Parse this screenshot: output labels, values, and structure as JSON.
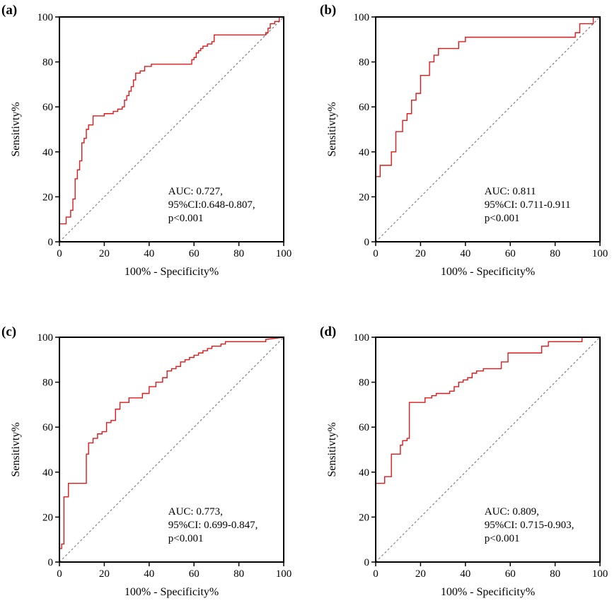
{
  "chart_data": [
    {
      "type": "line",
      "panel": "(a)",
      "xlabel": "100% - Specificity%",
      "ylabel": "Sensitivty%",
      "xlim": [
        0,
        100
      ],
      "ylim": [
        0,
        100
      ],
      "xticks": [
        "0",
        "20",
        "40",
        "60",
        "80",
        "100"
      ],
      "yticks": [
        "0",
        "20",
        "40",
        "60",
        "80",
        "100"
      ],
      "annotation": [
        "AUC: 0.727,",
        "95%CI:0.648-0.807,",
        "p<0.001"
      ],
      "series": [
        {
          "name": "ROC",
          "color": "#e0191a",
          "x": [
            0,
            0,
            3,
            3,
            5,
            5,
            6,
            6,
            7,
            7,
            8,
            8,
            9,
            9,
            10,
            10,
            11,
            11,
            12,
            12,
            13,
            13,
            15,
            15,
            20,
            20,
            24,
            24,
            26,
            26,
            28,
            28,
            29,
            29,
            30,
            30,
            31,
            31,
            32,
            32,
            33,
            33,
            34,
            34,
            35,
            35,
            36,
            36,
            37,
            37,
            38,
            38,
            39,
            39,
            41,
            41,
            59,
            59,
            60,
            60,
            61,
            61,
            62,
            62,
            63,
            63,
            64,
            64,
            66,
            66,
            68,
            68,
            69,
            69,
            70,
            70,
            92,
            92,
            93,
            93,
            94,
            94,
            96,
            96,
            98,
            98,
            100
          ],
          "y": [
            0,
            8,
            8,
            11,
            11,
            14,
            14,
            19,
            19,
            28,
            28,
            32,
            32,
            36,
            36,
            44,
            44,
            46,
            46,
            50,
            50,
            52,
            52,
            56,
            56,
            57,
            57,
            58,
            58,
            59,
            59,
            60,
            60,
            63,
            63,
            65,
            65,
            67,
            67,
            69,
            69,
            72,
            72,
            75,
            75,
            75,
            75,
            76,
            76,
            76,
            76,
            78,
            78,
            78,
            78,
            79,
            79,
            81,
            81,
            82,
            82,
            84,
            84,
            85,
            85,
            86,
            86,
            87,
            87,
            88,
            88,
            89,
            89,
            92,
            92,
            92,
            92,
            93,
            93,
            95,
            95,
            97,
            97,
            98,
            98,
            100,
            100
          ]
        },
        {
          "name": "reference",
          "color": "#7f7f7f",
          "x": [
            0,
            100
          ],
          "y": [
            0,
            100
          ]
        }
      ]
    },
    {
      "type": "line",
      "panel": "(b)",
      "xlabel": "100% - Specificity%",
      "ylabel": "Sensitivty%",
      "xlim": [
        0,
        100
      ],
      "ylim": [
        0,
        100
      ],
      "xticks": [
        "0",
        "20",
        "40",
        "60",
        "80",
        "100"
      ],
      "yticks": [
        "0",
        "20",
        "40",
        "60",
        "80",
        "100"
      ],
      "annotation": [
        "AUC: 0.811",
        "95%CI: 0.711-0.911",
        "p<0.001"
      ],
      "series": [
        {
          "name": "ROC",
          "color": "#e0191a",
          "x": [
            0,
            0,
            2,
            2,
            7,
            7,
            9,
            9,
            12,
            12,
            14,
            14,
            16,
            16,
            18,
            18,
            20,
            20,
            24,
            24,
            26,
            26,
            28,
            28,
            30,
            30,
            37,
            37,
            40,
            40,
            89,
            89,
            91,
            91,
            97,
            97,
            100
          ],
          "y": [
            0,
            29,
            29,
            34,
            34,
            40,
            40,
            49,
            49,
            54,
            54,
            57,
            57,
            63,
            63,
            66,
            66,
            74,
            74,
            80,
            80,
            83,
            83,
            86,
            86,
            86,
            86,
            89,
            89,
            91,
            91,
            93,
            93,
            97,
            97,
            100,
            100
          ]
        },
        {
          "name": "reference",
          "color": "#7f7f7f",
          "x": [
            0,
            100
          ],
          "y": [
            0,
            100
          ]
        }
      ]
    },
    {
      "type": "line",
      "panel": "(c)",
      "xlabel": "100% - Specificity%",
      "ylabel": "Sensitivty%",
      "xlim": [
        0,
        100
      ],
      "ylim": [
        0,
        100
      ],
      "xticks": [
        "0",
        "20",
        "40",
        "60",
        "80",
        "100"
      ],
      "yticks": [
        "0",
        "20",
        "40",
        "60",
        "80",
        "100"
      ],
      "annotation": [
        "AUC: 0.773,",
        "95%CI: 0.699-0.847,",
        "p<0.001"
      ],
      "series": [
        {
          "name": "ROC",
          "color": "#e0191a",
          "x": [
            0,
            0,
            1,
            1,
            2,
            2,
            4,
            4,
            12,
            12,
            13,
            13,
            15,
            15,
            17,
            17,
            19,
            19,
            21,
            21,
            23,
            23,
            25,
            25,
            27,
            27,
            31,
            31,
            37,
            37,
            40,
            40,
            43,
            43,
            46,
            46,
            48,
            48,
            50,
            50,
            52,
            52,
            54,
            54,
            56,
            56,
            58,
            58,
            60,
            60,
            62,
            62,
            64,
            64,
            66,
            66,
            68,
            68,
            70,
            70,
            72,
            72,
            74,
            74,
            80,
            80,
            92,
            92,
            100
          ],
          "y": [
            0,
            6,
            6,
            8,
            8,
            29,
            29,
            35,
            35,
            48,
            48,
            53,
            53,
            55,
            55,
            57,
            57,
            58,
            58,
            62,
            62,
            63,
            63,
            68,
            68,
            71,
            71,
            73,
            73,
            75,
            75,
            78,
            78,
            80,
            80,
            82,
            82,
            85,
            85,
            86,
            86,
            87,
            87,
            89,
            89,
            90,
            90,
            91,
            91,
            92,
            92,
            93,
            93,
            94,
            94,
            95,
            95,
            96,
            96,
            96,
            96,
            97,
            97,
            98,
            98,
            98,
            98,
            99,
            100
          ]
        },
        {
          "name": "reference",
          "color": "#7f7f7f",
          "x": [
            0,
            100
          ],
          "y": [
            0,
            100
          ]
        }
      ]
    },
    {
      "type": "line",
      "panel": "(d)",
      "xlabel": "100% - Specificity%",
      "ylabel": "Sensitivty%",
      "xlim": [
        0,
        100
      ],
      "ylim": [
        0,
        100
      ],
      "xticks": [
        "0",
        "20",
        "40",
        "60",
        "80",
        "100"
      ],
      "yticks": [
        "0",
        "20",
        "40",
        "60",
        "80",
        "100"
      ],
      "annotation": [
        "AUC: 0.809,",
        "95%CI: 0.715-0.903,",
        "p<0.001"
      ],
      "series": [
        {
          "name": "ROC",
          "color": "#e0191a",
          "x": [
            0,
            0,
            4,
            4,
            7,
            7,
            11,
            11,
            12,
            12,
            14,
            14,
            15,
            15,
            22,
            22,
            25,
            25,
            27,
            27,
            33,
            33,
            35,
            35,
            37,
            37,
            39,
            39,
            41,
            41,
            43,
            43,
            45,
            45,
            48,
            48,
            51,
            51,
            56,
            56,
            59,
            59,
            62,
            62,
            74,
            74,
            77,
            77,
            92,
            92,
            100
          ],
          "y": [
            0,
            35,
            35,
            38,
            38,
            48,
            48,
            52,
            52,
            54,
            54,
            55,
            55,
            71,
            71,
            73,
            73,
            74,
            74,
            75,
            75,
            76,
            76,
            78,
            78,
            80,
            80,
            81,
            81,
            82,
            82,
            84,
            84,
            85,
            85,
            86,
            86,
            86,
            86,
            89,
            89,
            93,
            93,
            93,
            93,
            96,
            96,
            98,
            98,
            100,
            100
          ]
        },
        {
          "name": "reference",
          "color": "#7f7f7f",
          "x": [
            0,
            100
          ],
          "y": [
            0,
            100
          ]
        }
      ]
    }
  ]
}
